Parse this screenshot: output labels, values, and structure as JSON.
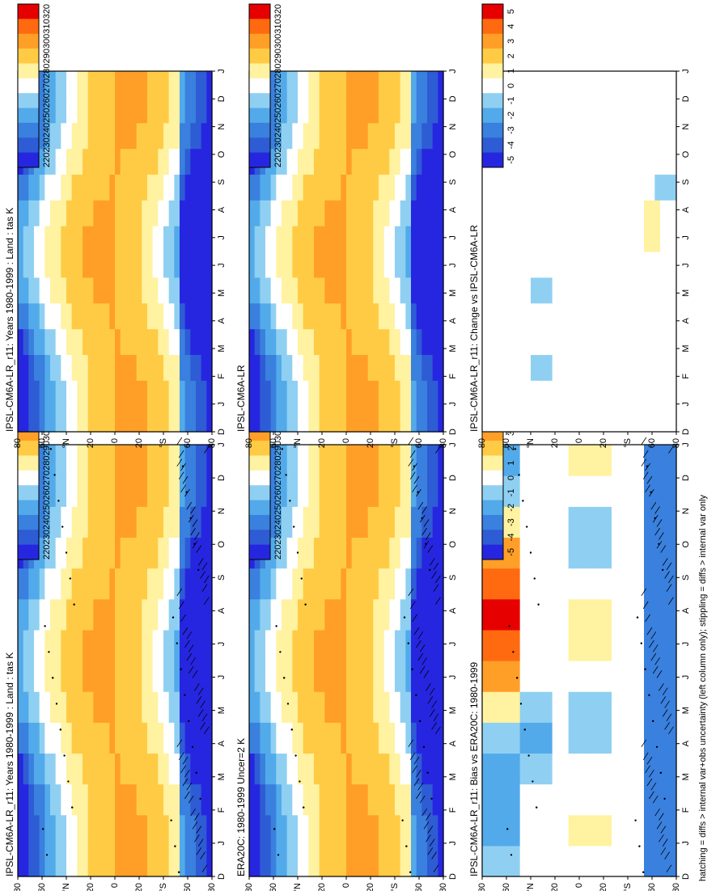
{
  "figure": {
    "footer": "hatching = diffs > internal var+obs uncertainty (left column only); stippling = diffs > internal var only"
  },
  "chart_data": [
    {
      "type": "heatmap",
      "id": "p1",
      "title": "IPSL-CM6A-LR_r11: Years 1980-1999 : Land : tas K",
      "x_ticks": [
        "D",
        "J",
        "F",
        "M",
        "A",
        "M",
        "J",
        "J",
        "A",
        "S",
        "O",
        "N",
        "D",
        "J"
      ],
      "y_ticks": [
        "80",
        "60",
        "°N",
        "20",
        "0",
        "20",
        "°S",
        "60",
        "80"
      ],
      "colorbar": [
        "320",
        "310",
        "300",
        "290",
        "280",
        "270",
        "260",
        "250",
        "240",
        "230",
        "220"
      ],
      "range": [
        215,
        325
      ],
      "field": "tas",
      "hatching": true,
      "stippling": true
    },
    {
      "type": "heatmap",
      "id": "p2",
      "title": "IPSL-CM6A-LR_r11: Years 1980-1999 : Land : tas K",
      "x_ticks": [
        "D",
        "J",
        "F",
        "M",
        "A",
        "M",
        "J",
        "J",
        "A",
        "S",
        "O",
        "N",
        "D",
        "J"
      ],
      "y_ticks": [
        "80",
        "60",
        "°N",
        "20",
        "0",
        "20",
        "°S",
        "60",
        "80"
      ],
      "colorbar": [
        "320",
        "310",
        "300",
        "290",
        "280",
        "270",
        "260",
        "250",
        "240",
        "230",
        "220"
      ],
      "range": [
        215,
        325
      ],
      "field": "tas",
      "hatching": false,
      "stippling": false
    },
    {
      "type": "heatmap",
      "id": "p3",
      "title": "ERA20C: 1980-1999 Uncer=2 K",
      "x_ticks": [
        "D",
        "J",
        "F",
        "M",
        "A",
        "M",
        "J",
        "J",
        "A",
        "S",
        "O",
        "N",
        "D",
        "J"
      ],
      "y_ticks": [
        "80",
        "60",
        "°N",
        "20",
        "0",
        "20",
        "°S",
        "60",
        "80"
      ],
      "colorbar": [
        "320",
        "310",
        "300",
        "290",
        "280",
        "270",
        "260",
        "250",
        "240",
        "230",
        "220"
      ],
      "range": [
        215,
        325
      ],
      "field": "tas",
      "hatching": true,
      "stippling": true
    },
    {
      "type": "heatmap",
      "id": "p4",
      "title": "IPSL-CM6A-LR",
      "x_ticks": [
        "D",
        "J",
        "F",
        "M",
        "A",
        "M",
        "J",
        "J",
        "A",
        "S",
        "O",
        "N",
        "D",
        "J"
      ],
      "y_ticks": [
        "80",
        "60",
        "°N",
        "20",
        "0",
        "20",
        "°S",
        "60",
        "80"
      ],
      "colorbar": [
        "320",
        "310",
        "300",
        "290",
        "280",
        "270",
        "260",
        "250",
        "240",
        "230",
        "220"
      ],
      "range": [
        215,
        325
      ],
      "field": "tas",
      "hatching": false,
      "stippling": false
    },
    {
      "type": "heatmap",
      "id": "p5",
      "title": "IPSL-CM6A-LR_r11: Bias vs ERA20C: 1980-1999",
      "x_ticks": [
        "D",
        "J",
        "F",
        "M",
        "A",
        "M",
        "J",
        "J",
        "A",
        "S",
        "O",
        "N",
        "D",
        "J"
      ],
      "y_ticks": [
        "80",
        "60",
        "°N",
        "20",
        "0",
        "20",
        "°S",
        "60",
        "80"
      ],
      "colorbar": [
        "5",
        "4",
        "3",
        "2",
        "1",
        "0",
        "-1",
        "-2",
        "-3",
        "-4",
        "-5"
      ],
      "range": [
        -5.5,
        5.5
      ],
      "field": "bias",
      "hatching": true,
      "stippling": true
    },
    {
      "type": "heatmap",
      "id": "p6",
      "title": "IPSL-CM6A-LR_r11: Change vs IPSL-CM6A-LR",
      "x_ticks": [
        "D",
        "J",
        "F",
        "M",
        "A",
        "M",
        "J",
        "J",
        "A",
        "S",
        "O",
        "N",
        "D",
        "J"
      ],
      "y_ticks": [
        "80",
        "60",
        "°N",
        "20",
        "0",
        "20",
        "°S",
        "60",
        "80"
      ],
      "colorbar": [
        "5",
        "4",
        "3",
        "2",
        "1",
        "0",
        "-1",
        "-2",
        "-3",
        "-4",
        "-5"
      ],
      "range": [
        -5.5,
        5.5
      ],
      "field": "change",
      "hatching": false,
      "stippling": false
    }
  ]
}
